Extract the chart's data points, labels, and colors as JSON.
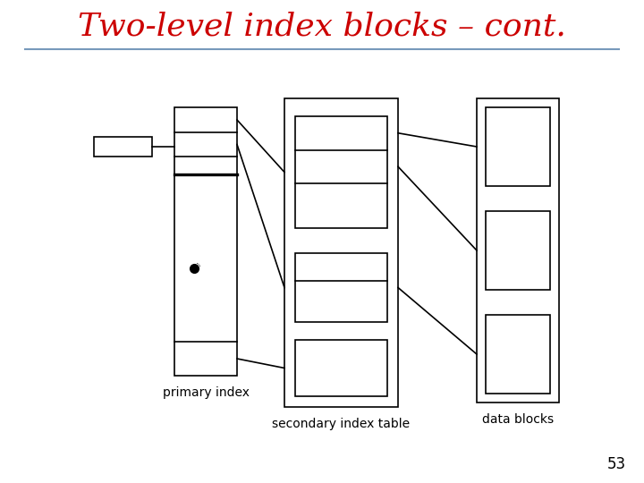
{
  "title": "Two-level index blocks – cont.",
  "title_color": "#cc0000",
  "title_fontsize": 26,
  "bg_color": "#ffffff",
  "separator_color": "#7799bb",
  "label_primary": "primary index",
  "label_secondary": "secondary index table",
  "label_data": "data blocks",
  "page_number": "53",
  "lw": 1.2
}
